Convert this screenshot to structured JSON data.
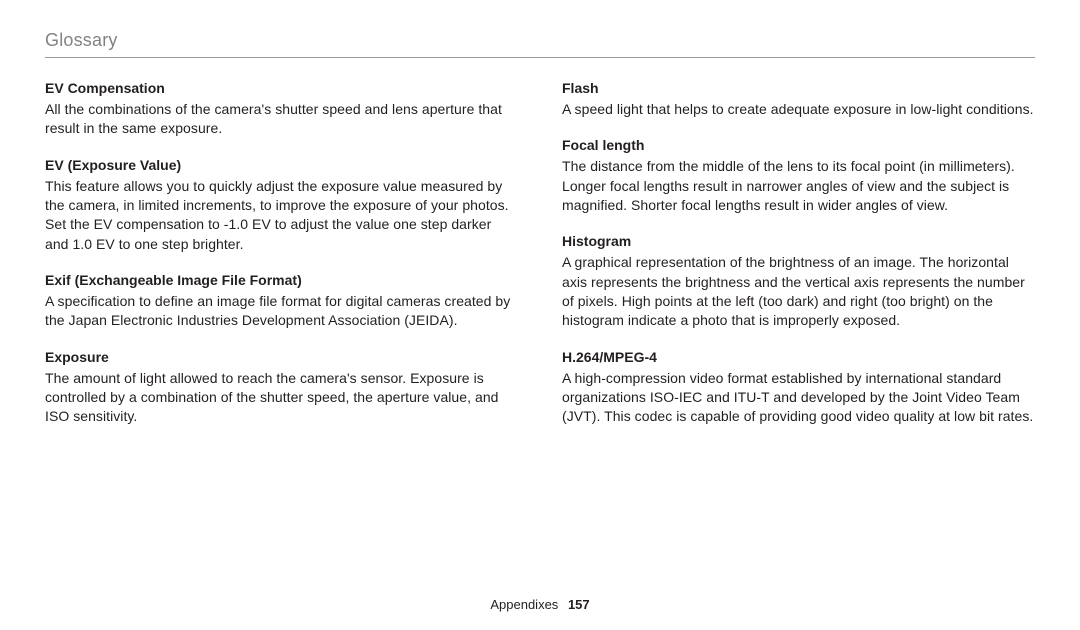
{
  "section_title": "Glossary",
  "footer": {
    "label": "Appendixes",
    "page": "157"
  },
  "left": {
    "items": [
      {
        "term": "EV Compensation",
        "def": "All the combinations of the camera's shutter speed and lens aperture that result in the same exposure."
      },
      {
        "term": "EV (Exposure Value)",
        "def": "This feature allows you to quickly adjust the exposure value measured by the camera, in limited increments, to improve the exposure of your photos. Set the EV compensation to -1.0 EV to adjust the value one step darker and 1.0 EV to one step brighter."
      },
      {
        "term": "Exif (Exchangeable Image File Format)",
        "def": "A specification to define an image file format for digital cameras created by the Japan Electronic Industries Development Association (JEIDA)."
      },
      {
        "term": "Exposure",
        "def": "The amount of light allowed to reach the camera's sensor. Exposure is controlled by a combination of the shutter speed, the aperture value, and ISO sensitivity."
      }
    ]
  },
  "right": {
    "items": [
      {
        "term": "Flash",
        "def": "A speed light that helps to create adequate exposure in low-light conditions."
      },
      {
        "term": "Focal length",
        "def": "The distance from the middle of the lens to its focal point (in millimeters). Longer focal lengths result in narrower angles of view and the subject is magnified. Shorter focal lengths result in wider angles of view."
      },
      {
        "term": "Histogram",
        "def": "A graphical representation of the brightness of an image. The horizontal axis represents the brightness and the vertical axis represents the number of pixels. High points at the left (too dark) and right (too bright) on the histogram indicate a photo that is improperly exposed."
      },
      {
        "term": "H.264/MPEG-4",
        "def": "A high-compression video format established by international standard organizations ISO-IEC and ITU-T and developed by the Joint Video Team (JVT). This codec is capable of providing good video quality at low bit rates."
      }
    ]
  }
}
